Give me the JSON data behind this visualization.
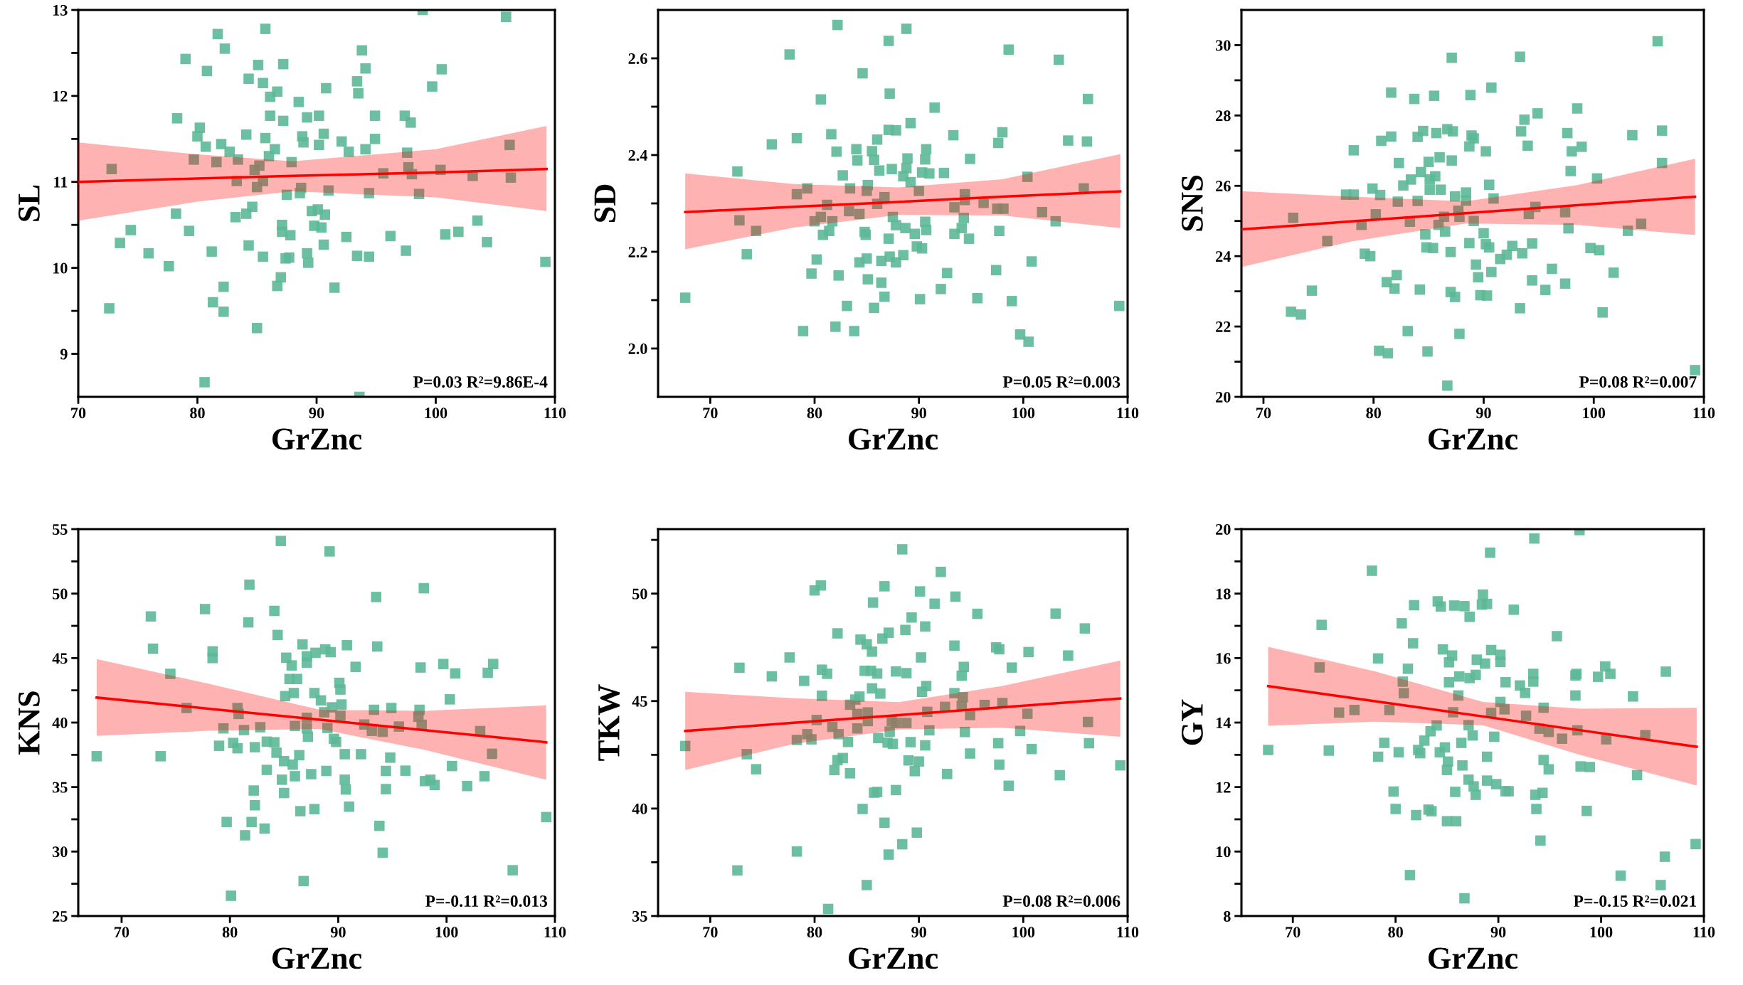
{
  "chart_data": [
    {
      "type": "scatter",
      "xlabel": "GrZnc",
      "ylabel": "SL",
      "xlim": [
        70,
        110
      ],
      "xticks": [
        70,
        80,
        90,
        100,
        110
      ],
      "ylim": [
        8.5,
        13
      ],
      "yticks": [
        9,
        {
          "value": 9.5,
          "label": null
        },
        10,
        {
          "value": 10.5,
          "label": null
        },
        11,
        {
          "value": 11.5,
          "label": null
        },
        12,
        {
          "value": 12.5,
          "label": null
        },
        13
      ],
      "annotations": [
        "P=0.03 R²=9.86E-4"
      ],
      "series": [
        {
          "color": "#5cb896",
          "marker": "square",
          "x": [
            105.9,
            85.7,
            81.7,
            82.3,
            79.0,
            80.8,
            85.1,
            87.2,
            93.8,
            94.1,
            100.5,
            84.3,
            85.5,
            86.7,
            86.1,
            90.8,
            93.4,
            93.5,
            99.7,
            88.5,
            78.3,
            86.1,
            87.2,
            89.2,
            90.2,
            94.9,
            97.4,
            97.9,
            80.2,
            80.0,
            84.1,
            85.7,
            88.8,
            88.9,
            90.6,
            92.1,
            94.9,
            80.7,
            82.0,
            82.7,
            86.5,
            90.2,
            92.7,
            94.1,
            97.6,
            106.2,
            72.8,
            79.7,
            81.6,
            83.4,
            86.0,
            87.9,
            84.8,
            85.2,
            97.7,
            100.4,
            95.6,
            98.0,
            103.1,
            106.3,
            83.3,
            85.5,
            85.0,
            88.7,
            88.6,
            87.5,
            91.0,
            94.4,
            98.6,
            78.2,
            83.2,
            84.1,
            84.6,
            89.6,
            90.1,
            90.7,
            74.4,
            73.5,
            79.3,
            87.1,
            87.1,
            87.8,
            89.8,
            90.4,
            92.5,
            96.2,
            100.8,
            101.9,
            103.5,
            104.3,
            75.9,
            77.6,
            81.2,
            84.3,
            85.5,
            87.4,
            87.7,
            89.2,
            89.3,
            90.6,
            93.4,
            94.4,
            97.5,
            109.2,
            87.0,
            86.7,
            91.5,
            82.2,
            81.3,
            82.2,
            72.6,
            85.0,
            80.6,
            98.9,
            93.6
          ],
          "values": [
            12.92,
            12.78,
            12.72,
            12.55,
            12.43,
            12.29,
            12.36,
            12.37,
            12.53,
            12.32,
            12.31,
            12.2,
            12.15,
            12.05,
            11.99,
            12.09,
            12.17,
            12.03,
            12.11,
            11.93,
            11.74,
            11.77,
            11.71,
            11.75,
            11.77,
            11.77,
            11.77,
            11.69,
            11.63,
            11.53,
            11.55,
            11.51,
            11.53,
            11.46,
            11.56,
            11.47,
            11.5,
            11.41,
            11.44,
            11.35,
            11.38,
            11.43,
            11.35,
            11.38,
            11.34,
            11.43,
            11.15,
            11.26,
            11.23,
            11.26,
            11.3,
            11.23,
            11.14,
            11.19,
            11.17,
            11.14,
            11.1,
            11.09,
            11.07,
            11.05,
            11.01,
            11.01,
            10.94,
            10.93,
            10.87,
            10.85,
            10.9,
            10.87,
            10.86,
            10.63,
            10.59,
            10.63,
            10.71,
            10.66,
            10.68,
            10.62,
            10.44,
            10.29,
            10.43,
            10.5,
            10.42,
            10.38,
            10.49,
            10.47,
            10.36,
            10.37,
            10.39,
            10.42,
            10.55,
            10.3,
            10.17,
            10.02,
            10.19,
            10.26,
            10.13,
            10.11,
            10.12,
            10.17,
            10.06,
            10.27,
            10.14,
            10.13,
            10.2,
            10.07,
            9.89,
            9.79,
            9.77,
            9.78,
            9.6,
            9.49,
            9.53,
            9.3,
            8.67,
            13.0,
            8.5
          ]
        },
        {
          "type": "line",
          "color": "#ff0000",
          "x": [
            70,
            80,
            88,
            100,
            109.3
          ],
          "values": [
            11.0,
            11.04,
            11.07,
            11.11,
            11.15
          ],
          "lower": [
            10.55,
            10.77,
            10.89,
            10.82,
            10.66
          ],
          "upper": [
            11.46,
            11.32,
            11.24,
            11.38,
            11.65
          ]
        }
      ]
    },
    {
      "type": "scatter",
      "xlabel": "GrZnc",
      "ylabel": "SD",
      "xlim": [
        65,
        110
      ],
      "xticks": [
        70,
        80,
        90,
        100,
        110
      ],
      "ylim": [
        1.9,
        2.7
      ],
      "yticks": [
        {
          "value": 2,
          "label": "2.0"
        },
        {
          "value": 2.1,
          "label": null
        },
        2.2,
        {
          "value": 2.3,
          "label": null
        },
        2.4,
        {
          "value": 2.5,
          "label": null
        },
        2.6
      ],
      "annotations": [
        "P=0.05 R²=0.003"
      ],
      "series": [
        {
          "color": "#5cb896",
          "marker": "square",
          "x": [
            82.2,
            88.8,
            87.1,
            77.6,
            98.6,
            103.4,
            84.6,
            87.2,
            80.6,
            106.2,
            91.5,
            89.2,
            87.1,
            87.8,
            81.6,
            78.3,
            75.9,
            86.0,
            93.3,
            98.0,
            97.6,
            104.3,
            106.1,
            82.1,
            84.0,
            85.5,
            90.7,
            84.1,
            85.7,
            88.9,
            90.6,
            94.9,
            72.6,
            86.2,
            87.4,
            88.8,
            90.3,
            91.0,
            92.4,
            82.7,
            88.5,
            89.2,
            100.4,
            78.3,
            79.3,
            83.4,
            85.1,
            85.0,
            90.0,
            105.8,
            94.4,
            81.2,
            86.7,
            86.0,
            93.4,
            94.4,
            96.2,
            97.5,
            98.1,
            72.8,
            74.4,
            80.0,
            80.6,
            81.7,
            83.3,
            84.3,
            87.5,
            87.8,
            90.6,
            94.3,
            101.8,
            103.1,
            80.8,
            81.4,
            84.8,
            84.9,
            88.7,
            89.6,
            90.7,
            93.4,
            94.1,
            94.8,
            97.7,
            87.1,
            89.8,
            90.3,
            73.5,
            80.2,
            84.3,
            85.0,
            86.4,
            87.2,
            87.8,
            88.5,
            100.8,
            79.7,
            82.3,
            85.1,
            86.4,
            92.7,
            97.4,
            92.1,
            67.6,
            83.1,
            86.7,
            85.7,
            90.1,
            95.6,
            98.9,
            109.2,
            78.9,
            82.0,
            83.8,
            99.7,
            100.5
          ],
          "values": [
            2.669,
            2.661,
            2.636,
            2.608,
            2.618,
            2.597,
            2.569,
            2.527,
            2.515,
            2.516,
            2.498,
            2.466,
            2.452,
            2.451,
            2.443,
            2.435,
            2.422,
            2.432,
            2.441,
            2.447,
            2.425,
            2.43,
            2.428,
            2.407,
            2.412,
            2.408,
            2.412,
            2.389,
            2.39,
            2.393,
            2.391,
            2.392,
            2.366,
            2.368,
            2.371,
            2.373,
            2.364,
            2.362,
            2.363,
            2.358,
            2.356,
            2.344,
            2.355,
            2.319,
            2.331,
            2.331,
            2.338,
            2.326,
            2.326,
            2.331,
            2.319,
            2.297,
            2.313,
            2.299,
            2.292,
            2.307,
            2.301,
            2.289,
            2.289,
            2.265,
            2.243,
            2.263,
            2.272,
            2.263,
            2.284,
            2.278,
            2.272,
            2.255,
            2.262,
            2.27,
            2.282,
            2.263,
            2.235,
            2.243,
            2.241,
            2.235,
            2.249,
            2.237,
            2.245,
            2.237,
            2.249,
            2.227,
            2.243,
            2.227,
            2.211,
            2.207,
            2.195,
            2.184,
            2.178,
            2.186,
            2.181,
            2.19,
            2.178,
            2.193,
            2.18,
            2.155,
            2.151,
            2.143,
            2.136,
            2.156,
            2.162,
            2.123,
            2.105,
            2.088,
            2.107,
            2.084,
            2.102,
            2.104,
            2.098,
            2.088,
            2.036,
            2.045,
            2.036,
            2.029,
            2.014
          ]
        },
        {
          "type": "line",
          "color": "#ff0000",
          "x": [
            67.6,
            78,
            88,
            98,
            109.3
          ],
          "values": [
            2.282,
            2.293,
            2.303,
            2.314,
            2.325
          ],
          "lower": [
            2.205,
            2.25,
            2.276,
            2.275,
            2.249
          ],
          "upper": [
            2.362,
            2.34,
            2.333,
            2.35,
            2.402
          ]
        }
      ]
    },
    {
      "type": "scatter",
      "xlabel": "GrZnc",
      "ylabel": "SNS",
      "xlim": [
        68,
        110
      ],
      "xticks": [
        70,
        80,
        90,
        100,
        110
      ],
      "ylim": [
        20,
        31
      ],
      "yticks": [
        20,
        {
          "value": 21,
          "label": null
        },
        22,
        {
          "value": 23,
          "label": null
        },
        24,
        {
          "value": 25,
          "label": null
        },
        26,
        {
          "value": 27,
          "label": null
        },
        28,
        {
          "value": 29,
          "label": null
        },
        30
      ],
      "annotations": [
        "P=0.08 R²=0.007"
      ],
      "series": [
        {
          "color": "#5cb896",
          "marker": "square",
          "x": [
            105.8,
            87.1,
            93.3,
            81.6,
            83.7,
            85.5,
            88.8,
            90.7,
            98.5,
            94.9,
            93.7,
            93.4,
            97.6,
            103.5,
            106.2,
            78.2,
            80.7,
            81.6,
            84.0,
            84.5,
            85.7,
            86.7,
            87.2,
            88.9,
            89.1,
            88.7,
            90.2,
            94.0,
            98.0,
            98.9,
            97.9,
            106.2,
            82.3,
            85.0,
            86.0,
            87.1,
            84.3,
            83.4,
            82.7,
            85.1,
            85.6,
            100.3,
            90.5,
            79.9,
            80.6,
            85.1,
            86.1,
            88.4,
            87.4,
            77.5,
            78.2,
            82.2,
            84.0,
            88.4,
            90.9,
            72.7,
            80.2,
            78.9,
            83.3,
            86.4,
            87.7,
            87.8,
            85.9,
            89.1,
            94.1,
            94.7,
            97.4,
            104.3,
            75.8,
            84.7,
            86.5,
            90.0,
            97.7,
            103.1,
            79.2,
            79.7,
            84.8,
            85.4,
            87.0,
            88.7,
            90.2,
            90.5,
            91.5,
            92.1,
            92.6,
            93.5,
            94.4,
            99.7,
            100.5,
            74.4,
            81.2,
            81.9,
            82.1,
            84.2,
            87.0,
            87.4,
            89.3,
            89.5,
            89.7,
            90.3,
            90.7,
            94.4,
            95.6,
            96.2,
            97.4,
            101.8,
            72.5,
            73.4,
            93.3,
            100.8,
            83.1,
            87.8,
            80.5,
            81.3,
            84.9,
            86.7,
            109.2
          ],
          "values": [
            30.11,
            29.64,
            29.67,
            28.65,
            28.47,
            28.56,
            28.58,
            28.79,
            28.2,
            28.06,
            27.88,
            27.55,
            27.5,
            27.44,
            27.57,
            27.01,
            27.28,
            27.4,
            27.39,
            27.56,
            27.5,
            27.61,
            27.55,
            27.43,
            27.35,
            27.12,
            26.98,
            27.14,
            26.98,
            27.11,
            26.42,
            26.65,
            26.65,
            26.68,
            26.81,
            26.72,
            26.39,
            26.18,
            26.01,
            26.18,
            26.27,
            26.21,
            26.03,
            25.92,
            25.74,
            25.89,
            25.89,
            25.81,
            25.7,
            25.75,
            25.75,
            25.55,
            25.57,
            25.58,
            25.64,
            25.09,
            25.19,
            24.89,
            24.98,
            25.12,
            25.29,
            25.12,
            24.89,
            25.0,
            25.2,
            25.4,
            25.25,
            24.92,
            24.43,
            24.62,
            24.7,
            24.65,
            24.79,
            24.72,
            24.07,
            24.0,
            24.25,
            24.23,
            24.12,
            24.37,
            24.34,
            24.25,
            23.92,
            24.04,
            24.29,
            24.08,
            24.36,
            24.23,
            24.17,
            23.02,
            23.26,
            23.08,
            23.46,
            23.05,
            22.98,
            22.84,
            23.76,
            23.4,
            22.89,
            22.88,
            23.55,
            23.31,
            23.04,
            23.64,
            23.22,
            23.53,
            22.42,
            22.34,
            22.52,
            22.4,
            21.87,
            21.79,
            21.31,
            21.24,
            21.29,
            20.32,
            20.76
          ]
        },
        {
          "type": "line",
          "color": "#ff0000",
          "x": [
            68,
            78,
            88.4,
            98.5,
            109.2
          ],
          "values": [
            24.76,
            24.99,
            25.22,
            25.45,
            25.69
          ],
          "lower": [
            23.69,
            24.42,
            24.93,
            24.89,
            24.6
          ],
          "upper": [
            25.85,
            25.69,
            25.56,
            26.02,
            26.77
          ]
        }
      ]
    },
    {
      "type": "scatter",
      "xlabel": "GrZnc",
      "ylabel": "KNS",
      "xlim": [
        66,
        110
      ],
      "xticks": [
        70,
        80,
        90,
        100,
        110
      ],
      "ylim": [
        25,
        55
      ],
      "yticks": [
        25,
        {
          "value": 27.5,
          "label": null
        },
        30,
        {
          "value": 32.5,
          "label": null
        },
        35,
        {
          "value": 37.5,
          "label": null
        },
        40,
        {
          "value": 42.5,
          "label": null
        },
        45,
        {
          "value": 47.5,
          "label": null
        },
        50,
        {
          "value": 52.5,
          "label": null
        },
        55
      ],
      "annotations": [
        "P=-0.11 R²=0.013"
      ],
      "series": [
        {
          "color": "#5cb896",
          "marker": "square",
          "x": [
            84.7,
            89.2,
            81.8,
            97.9,
            93.5,
            72.7,
            77.7,
            84.1,
            81.7,
            84.4,
            72.9,
            78.4,
            78.4,
            86.7,
            87.1,
            87.1,
            87.9,
            88.8,
            89.3,
            90.8,
            93.6,
            85.2,
            85.7,
            91.6,
            97.6,
            99.7,
            100.8,
            103.8,
            104.3,
            74.5,
            85.5,
            86.2,
            90.1,
            90.2,
            85.1,
            85.9,
            87.8,
            88.4,
            100.3,
            76.0,
            80.7,
            80.8,
            89.4,
            90.3,
            93.3,
            94.9,
            97.5,
            97.4,
            87.1,
            88.7,
            90.2,
            79.4,
            81.3,
            82.8,
            86.0,
            87.1,
            89.0,
            92.4,
            93.1,
            94.1,
            95.6,
            97.7,
            103.1,
            87.2,
            89.6,
            79.0,
            80.3,
            80.7,
            82.3,
            83.4,
            84.1,
            89.8,
            104.2,
            67.7,
            73.6,
            84.3,
            85.0,
            85.8,
            86.4,
            90.6,
            92.1,
            94.8,
            100.5,
            83.4,
            86.0,
            87.5,
            88.9,
            90.6,
            94.4,
            96.2,
            98.0,
            98.5,
            98.9,
            101.9,
            103.5,
            84.8,
            85.0,
            90.7,
            94.4,
            82.2,
            82.3,
            86.5,
            87.8,
            91.0,
            109.2,
            79.7,
            82.0,
            83.2,
            81.4,
            93.8,
            94.1,
            106.1,
            86.8,
            80.1
          ],
          "values": [
            54.08,
            53.27,
            50.69,
            50.42,
            49.74,
            48.23,
            48.8,
            48.66,
            47.77,
            46.79,
            45.73,
            45.52,
            45.0,
            46.06,
            45.14,
            44.65,
            45.41,
            45.68,
            45.46,
            46.0,
            45.9,
            45.03,
            44.43,
            44.32,
            44.27,
            44.54,
            43.81,
            43.86,
            44.54,
            43.78,
            43.38,
            43.38,
            43.08,
            42.56,
            42.05,
            42.29,
            42.29,
            41.72,
            41.8,
            41.13,
            41.13,
            40.67,
            41.18,
            41.4,
            40.99,
            41.13,
            40.99,
            40.45,
            40.37,
            40.8,
            40.53,
            39.55,
            39.42,
            39.64,
            39.74,
            39.55,
            39.58,
            39.85,
            39.36,
            39.28,
            39.69,
            39.83,
            39.34,
            38.9,
            38.74,
            38.2,
            38.42,
            38.01,
            38.09,
            38.52,
            38.47,
            38.5,
            37.58,
            37.39,
            37.39,
            37.66,
            37.01,
            36.74,
            37.47,
            37.55,
            37.55,
            37.28,
            36.63,
            36.33,
            35.84,
            36.0,
            36.25,
            35.57,
            36.25,
            36.27,
            35.46,
            35.57,
            35.16,
            35.08,
            35.84,
            35.57,
            34.54,
            34.81,
            34.84,
            34.73,
            33.59,
            33.13,
            33.29,
            33.48,
            32.67,
            32.29,
            32.29,
            31.78,
            31.26,
            31.99,
            29.91,
            28.55,
            27.71,
            26.57
          ]
        },
        {
          "type": "line",
          "color": "#ff0000",
          "x": [
            67.7,
            78,
            88.3,
            98,
            109.2
          ],
          "values": [
            41.94,
            41.08,
            40.22,
            39.41,
            38.47
          ],
          "lower": [
            38.96,
            39.36,
            39.5,
            37.87,
            35.57
          ],
          "upper": [
            44.92,
            43.02,
            40.99,
            40.91,
            41.34
          ]
        }
      ]
    },
    {
      "type": "scatter",
      "xlabel": "GrZnc",
      "ylabel": "TKW",
      "xlim": [
        65,
        110
      ],
      "xticks": [
        70,
        80,
        90,
        100,
        110
      ],
      "ylim": [
        35,
        53
      ],
      "yticks": [
        35,
        {
          "value": 37.5,
          "label": null
        },
        40,
        {
          "value": 42.5,
          "label": null
        },
        45,
        {
          "value": 47.5,
          "label": null
        },
        50,
        {
          "value": 52.5,
          "label": null
        }
      ],
      "annotations": [
        "P=0.08 R²=0.006"
      ],
      "series": [
        {
          "color": "#5cb896",
          "marker": "square",
          "x": [
            88.4,
            92.1,
            80.0,
            80.6,
            86.7,
            90.1,
            93.5,
            85.6,
            91.5,
            95.6,
            103.1,
            105.9,
            89.3,
            90.6,
            87.1,
            88.7,
            82.2,
            86.5,
            84.4,
            85.0,
            85.5,
            93.4,
            97.4,
            97.7,
            100.5,
            104.3,
            77.6,
            90.2,
            72.8,
            75.9,
            79.0,
            80.7,
            81.2,
            84.8,
            85.4,
            86.0,
            87.8,
            88.8,
            94.3,
            94.1,
            98.9,
            80.7,
            85.5,
            86.3,
            90.7,
            90.3,
            93.4,
            94.2,
            83.9,
            84.3,
            83.4,
            84.1,
            85.1,
            85.1,
            90.8,
            92.5,
            94.1,
            94.9,
            96.3,
            98.0,
            100.4,
            106.2,
            80.2,
            81.7,
            84.1,
            87.4,
            87.8,
            88.8,
            87.2,
            79.3,
            79.7,
            78.3,
            82.3,
            83.2,
            86.1,
            87.0,
            87.5,
            89.2,
            91.0,
            90.6,
            94.4,
            97.6,
            99.7,
            106.3,
            67.6,
            73.5,
            94.9,
            100.8,
            82.2,
            82.7,
            89.0,
            90.0,
            81.9,
            83.4,
            89.6,
            92.7,
            97.7,
            103.5,
            109.3,
            74.4,
            98.6,
            85.7,
            86.0,
            87.8,
            84.6,
            86.7,
            89.8,
            88.4,
            87.1,
            78.3,
            72.6,
            85.0,
            81.3
          ],
          "values": [
            52.06,
            51.01,
            50.15,
            50.38,
            50.34,
            50.1,
            49.86,
            49.58,
            49.53,
            49.06,
            49.07,
            48.38,
            48.89,
            48.47,
            48.18,
            48.31,
            48.15,
            47.91,
            47.86,
            47.64,
            47.3,
            47.58,
            47.5,
            47.41,
            47.28,
            47.12,
            47.03,
            47.03,
            46.55,
            46.15,
            45.94,
            46.46,
            46.27,
            46.41,
            46.41,
            46.28,
            46.38,
            46.3,
            46.59,
            46.18,
            46.56,
            45.25,
            45.59,
            45.35,
            45.7,
            45.43,
            45.37,
            45.18,
            45.07,
            45.21,
            44.83,
            44.4,
            44.47,
            44.07,
            44.5,
            44.73,
            44.77,
            44.35,
            44.82,
            44.91,
            44.41,
            44.03,
            44.12,
            43.8,
            43.73,
            44.07,
            43.98,
            43.98,
            43.58,
            43.46,
            43.22,
            43.19,
            43.46,
            43.1,
            43.28,
            43.07,
            43.01,
            43.09,
            43.64,
            42.94,
            43.56,
            43.04,
            43.61,
            43.04,
            42.91,
            42.53,
            42.56,
            42.77,
            42.25,
            42.35,
            42.24,
            42.19,
            41.79,
            41.64,
            41.74,
            41.61,
            42.04,
            41.55,
            42.01,
            41.83,
            41.06,
            40.74,
            40.77,
            40.86,
            39.98,
            39.34,
            38.88,
            38.34,
            37.86,
            38.0,
            37.12,
            36.44,
            35.33
          ]
        },
        {
          "type": "line",
          "color": "#ff0000",
          "x": [
            67.6,
            78,
            88.1,
            98,
            109.3
          ],
          "values": [
            43.61,
            43.99,
            44.35,
            44.71,
            45.12
          ],
          "lower": [
            41.79,
            43.01,
            43.68,
            43.76,
            43.34
          ],
          "upper": [
            45.43,
            45.13,
            44.95,
            45.7,
            46.89
          ]
        }
      ]
    },
    {
      "type": "scatter",
      "xlabel": "GrZnc",
      "ylabel": "GY",
      "xlim": [
        65,
        110
      ],
      "xticks": [
        70,
        80,
        90,
        100,
        110
      ],
      "ylim": [
        8,
        20
      ],
      "yticks": [
        8,
        {
          "value": 9,
          "label": null
        },
        10,
        {
          "value": 11,
          "label": null
        },
        12,
        {
          "value": 13,
          "label": null
        },
        14,
        {
          "value": 15,
          "label": null
        },
        16,
        {
          "value": 17,
          "label": null
        },
        18,
        {
          "value": 19,
          "label": null
        },
        20
      ],
      "annotations": [
        "P=-0.15 R²=0.021"
      ],
      "series": [
        {
          "color": "#5cb896",
          "marker": "square",
          "x": [
            97.9,
            93.5,
            89.2,
            77.7,
            88.5,
            84.1,
            84.4,
            81.8,
            85.7,
            86.7,
            88.4,
            88.9,
            87.2,
            91.5,
            72.8,
            80.6,
            95.7,
            81.7,
            84.6,
            85.5,
            89.3,
            90.2,
            78.3,
            72.6,
            81.2,
            85.2,
            87.9,
            88.7,
            90.2,
            93.4,
            97.5,
            97.6,
            99.7,
            100.4,
            100.9,
            106.3,
            80.7,
            85.2,
            86.2,
            87.2,
            87.8,
            90.7,
            92.1,
            92.6,
            93.4,
            80.8,
            86.1,
            97.5,
            103.1,
            90.2,
            94.4,
            74.5,
            76.0,
            79.4,
            85.6,
            89.3,
            90.6,
            92.7,
            84.0,
            87.1,
            83.4,
            87.5,
            89.6,
            94.0,
            94.9,
            96.2,
            97.7,
            100.5,
            104.3,
            82.8,
            78.9,
            86.4,
            67.6,
            73.5,
            80.3,
            82.2,
            82.4,
            84.3,
            84.8,
            78.3,
            88.9,
            85.1,
            85.0,
            86.5,
            94.4,
            94.9,
            98.0,
            98.9,
            103.5,
            87.1,
            87.6,
            88.9,
            89.8,
            87.8,
            90.7,
            91.0,
            93.6,
            94.3,
            79.8,
            85.8,
            80.0,
            82.0,
            83.2,
            83.5,
            85.0,
            85.9,
            93.7,
            98.6,
            94.1,
            109.2,
            106.2,
            81.4,
            101.9,
            105.8,
            86.7
          ],
          "values": [
            19.97,
            19.71,
            19.27,
            18.71,
            17.97,
            17.76,
            17.6,
            17.64,
            17.63,
            17.61,
            17.66,
            17.68,
            17.28,
            17.5,
            17.03,
            17.08,
            16.68,
            16.46,
            16.27,
            16.08,
            16.25,
            16.1,
            15.99,
            15.71,
            15.67,
            15.87,
            15.95,
            15.83,
            15.88,
            15.51,
            15.46,
            15.51,
            15.42,
            15.74,
            15.51,
            15.58,
            15.27,
            15.25,
            15.43,
            15.38,
            15.48,
            15.25,
            15.15,
            14.92,
            15.27,
            14.91,
            14.84,
            14.84,
            14.81,
            14.64,
            14.46,
            14.31,
            14.39,
            14.39,
            14.32,
            14.3,
            14.41,
            14.21,
            13.91,
            13.92,
            13.73,
            13.6,
            13.56,
            13.81,
            13.71,
            13.5,
            13.76,
            13.48,
            13.61,
            13.44,
            13.37,
            13.37,
            13.15,
            13.13,
            13.08,
            13.15,
            13.05,
            13.08,
            13.23,
            12.94,
            12.94,
            12.79,
            12.53,
            12.67,
            12.84,
            12.55,
            12.64,
            12.62,
            12.37,
            12.23,
            12.02,
            12.2,
            12.09,
            11.76,
            11.87,
            11.87,
            11.76,
            11.82,
            11.86,
            11.85,
            11.32,
            11.13,
            11.3,
            11.25,
            10.94,
            10.94,
            11.32,
            11.26,
            10.34,
            10.23,
            9.84,
            9.27,
            9.25,
            8.96,
            8.55
          ]
        },
        {
          "type": "line",
          "color": "#ff0000",
          "x": [
            67.6,
            78,
            88.5,
            98,
            109.3
          ],
          "values": [
            15.13,
            14.66,
            14.19,
            13.76,
            13.25
          ],
          "lower": [
            13.9,
            14.03,
            13.92,
            12.99,
            12.05
          ],
          "upper": [
            16.35,
            15.59,
            14.64,
            14.43,
            14.46
          ]
        }
      ]
    }
  ]
}
